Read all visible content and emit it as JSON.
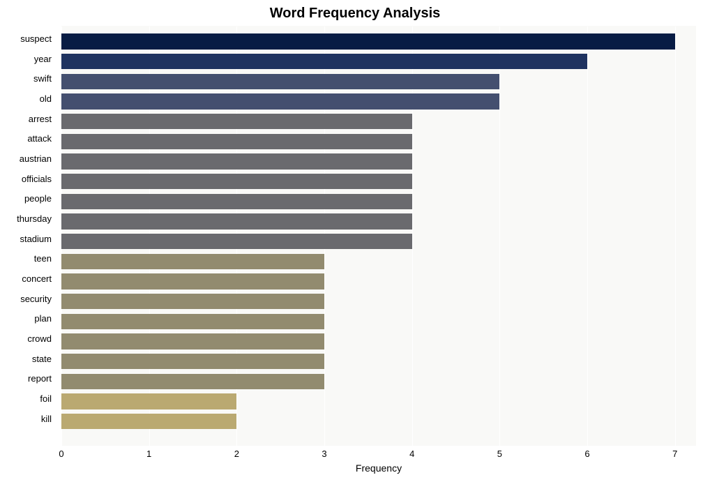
{
  "chart": {
    "type": "bar-horizontal",
    "title": "Word Frequency Analysis",
    "title_fontsize": 20,
    "title_fontweight": "bold",
    "xlabel": "Frequency",
    "xlabel_fontsize": 14,
    "background_color": "#ffffff",
    "plot_bg_color": "#f9f9f7",
    "grid_color": "#ffffff",
    "xlim": [
      0,
      7.4
    ],
    "xticks": [
      0,
      1,
      2,
      3,
      4,
      5,
      6,
      7
    ],
    "xtick_fontsize": 13,
    "ylabel_fontsize": 13,
    "bar_height_ratio": 0.78,
    "rows": [
      {
        "label": "suspect",
        "value": 7,
        "color": "#081c44"
      },
      {
        "label": "year",
        "value": 6,
        "color": "#1f3360"
      },
      {
        "label": "swift",
        "value": 5,
        "color": "#444f6f"
      },
      {
        "label": "old",
        "value": 5,
        "color": "#444f6f"
      },
      {
        "label": "arrest",
        "value": 4,
        "color": "#6a6a6e"
      },
      {
        "label": "attack",
        "value": 4,
        "color": "#6a6a6e"
      },
      {
        "label": "austrian",
        "value": 4,
        "color": "#6a6a6e"
      },
      {
        "label": "officials",
        "value": 4,
        "color": "#6a6a6e"
      },
      {
        "label": "people",
        "value": 4,
        "color": "#6a6a6e"
      },
      {
        "label": "thursday",
        "value": 4,
        "color": "#6a6a6e"
      },
      {
        "label": "stadium",
        "value": 4,
        "color": "#6a6a6e"
      },
      {
        "label": "teen",
        "value": 3,
        "color": "#928b6f"
      },
      {
        "label": "concert",
        "value": 3,
        "color": "#928b6f"
      },
      {
        "label": "security",
        "value": 3,
        "color": "#928b6f"
      },
      {
        "label": "plan",
        "value": 3,
        "color": "#928b6f"
      },
      {
        "label": "crowd",
        "value": 3,
        "color": "#928b6f"
      },
      {
        "label": "state",
        "value": 3,
        "color": "#928b6f"
      },
      {
        "label": "report",
        "value": 3,
        "color": "#928b6f"
      },
      {
        "label": "foil",
        "value": 2,
        "color": "#baa971"
      },
      {
        "label": "kill",
        "value": 2,
        "color": "#baa971"
      }
    ]
  }
}
